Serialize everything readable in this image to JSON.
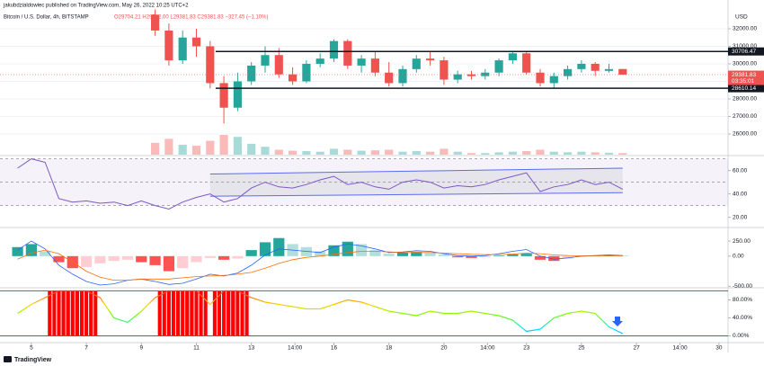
{
  "header": {
    "publisher": "jakubdzialdowiec published on TradingView.com, May 26, 2022 10:25 UTC+2",
    "symbol": "Bitcoin / U.S. Dollar, 4h, BITSTAMP",
    "ohlc": "O29704.21 H29712.00 L29381.83 C29381.83 −327.45 (−1.10%)"
  },
  "footer": {
    "logo": "TradingView"
  },
  "chart_data": [
    {
      "type": "candlestick",
      "currency": "USD",
      "up_color": "#26a69a",
      "down_color": "#ef5350",
      "grid": true,
      "xlim": [
        3.86,
        30.33
      ],
      "ylim": [
        24820,
        33230
      ],
      "yticks": [
        {
          "value": 26000,
          "label": "26000.00"
        },
        {
          "value": 27000,
          "label": "27000.00"
        },
        {
          "value": 28000,
          "label": "28000.00"
        },
        {
          "value": 29000,
          "label": "29000.00"
        },
        {
          "value": 30000,
          "label": "30000.00"
        },
        {
          "value": 31000,
          "label": "31000.00"
        },
        {
          "value": 32000,
          "label": "32000.00"
        }
      ],
      "hlines": [
        30706.47,
        28610.14
      ],
      "hline_start": 11.7,
      "last_price": 29381.83,
      "countdown": "03:35:01",
      "x": [
        9.5,
        10,
        10.5,
        11,
        11.5,
        12,
        12.5,
        13,
        13.5,
        14,
        14.5,
        15,
        15.5,
        16,
        16.5,
        17,
        17.5,
        18,
        18.5,
        19,
        19.5,
        20,
        20.5,
        21,
        21.5,
        22,
        22.5,
        23,
        23.5,
        24,
        24.5,
        25,
        25.5,
        26,
        26.5
      ],
      "open": [
        32800,
        31900,
        30200,
        31500,
        31000,
        28900,
        27500,
        29000,
        29900,
        30500,
        29400,
        29000,
        30000,
        30300,
        31300,
        29900,
        30300,
        29500,
        28900,
        29700,
        30300,
        30200,
        29100,
        29400,
        29300,
        29500,
        30200,
        30600,
        29500,
        28900,
        29300,
        29700,
        30000,
        29600,
        29704.21
      ],
      "high": [
        33100,
        32300,
        31900,
        32000,
        31300,
        29300,
        29500,
        30100,
        31000,
        30900,
        29800,
        30200,
        30600,
        31400,
        31400,
        30500,
        30700,
        30100,
        29900,
        30500,
        30700,
        30400,
        29600,
        29600,
        29700,
        30300,
        30700,
        30700,
        29700,
        29500,
        29900,
        30200,
        30100,
        30000,
        29712
      ],
      "low": [
        31600,
        29900,
        30000,
        30400,
        28600,
        26600,
        27300,
        28800,
        29500,
        29200,
        28800,
        28900,
        29800,
        30100,
        29700,
        29500,
        29300,
        28700,
        28700,
        29500,
        29900,
        28800,
        28900,
        29100,
        29100,
        29300,
        30000,
        29400,
        28700,
        28600,
        29100,
        29500,
        29300,
        29500,
        29381.83
      ],
      "close": [
        31900,
        30200,
        31500,
        31000,
        28900,
        27500,
        29000,
        29900,
        30500,
        29400,
        29000,
        30000,
        30300,
        31300,
        29900,
        30300,
        29500,
        28900,
        29700,
        30300,
        30200,
        29100,
        29400,
        29300,
        29500,
        30200,
        30600,
        29500,
        28900,
        29300,
        29700,
        30000,
        29600,
        29700,
        29381.83
      ],
      "volume": [
        60,
        80,
        50,
        45,
        70,
        100,
        90,
        55,
        40,
        25,
        20,
        18,
        15,
        30,
        25,
        20,
        22,
        25,
        15,
        18,
        15,
        30,
        15,
        8,
        8,
        12,
        15,
        18,
        25,
        15,
        12,
        15,
        12,
        10,
        8
      ]
    },
    {
      "type": "line",
      "color": "#7e57c2",
      "xlim": [
        3.86,
        30.33
      ],
      "ylim": [
        12,
        72
      ],
      "yticks": [
        {
          "value": 20,
          "label": "20.00"
        },
        {
          "value": 40,
          "label": "40.00"
        },
        {
          "value": 60,
          "label": "60.00"
        }
      ],
      "bands": [
        30,
        50,
        70
      ],
      "channel": {
        "x": [
          11.5,
          26.5
        ],
        "upper": [
          57,
          62
        ],
        "lower": [
          38,
          41
        ]
      },
      "x": [
        4.5,
        5,
        5.5,
        6,
        6.5,
        7,
        7.5,
        8,
        8.5,
        9,
        9.5,
        10,
        10.5,
        11,
        11.5,
        12,
        12.5,
        13,
        13.5,
        14,
        14.5,
        15,
        15.5,
        16,
        16.5,
        17,
        17.5,
        18,
        18.5,
        19,
        19.5,
        20,
        20.5,
        21,
        21.5,
        22,
        22.5,
        23,
        23.5,
        24,
        24.5,
        25,
        25.5,
        26,
        26.5
      ],
      "values": [
        62,
        70,
        67,
        36,
        33,
        34,
        32,
        33,
        30,
        34,
        30,
        27,
        33,
        37,
        40,
        33,
        36,
        45,
        50,
        46,
        45,
        48,
        52,
        55,
        48,
        50,
        46,
        44,
        50,
        52,
        50,
        45,
        47,
        46,
        48,
        52,
        55,
        58,
        42,
        46,
        48,
        52,
        48,
        50,
        44
      ]
    },
    {
      "type": "macd",
      "macd_color": "#2962ff",
      "signal_color": "#ff6d00",
      "xlim": [
        3.86,
        30.33
      ],
      "ylim": [
        -510,
        460
      ],
      "yticks": [
        {
          "value": -500,
          "label": "-500.00"
        },
        {
          "value": 0,
          "label": "0.00"
        },
        {
          "value": 250,
          "label": "250.00"
        }
      ],
      "x": [
        4.5,
        5,
        5.5,
        6,
        6.5,
        7,
        7.5,
        8,
        8.5,
        9,
        9.5,
        10,
        10.5,
        11,
        11.5,
        12,
        12.5,
        13,
        13.5,
        14,
        14.5,
        15,
        15.5,
        16,
        16.5,
        17,
        17.5,
        18,
        18.5,
        19,
        19.5,
        20,
        20.5,
        21,
        21.5,
        22,
        22.5,
        23,
        23.5,
        24,
        24.5,
        25,
        25.5,
        26,
        26.5
      ],
      "histogram": [
        150,
        200,
        80,
        -100,
        -200,
        -180,
        -120,
        -80,
        -60,
        -100,
        -150,
        -250,
        -200,
        -100,
        -30,
        -60,
        -40,
        100,
        230,
        300,
        200,
        150,
        80,
        180,
        240,
        200,
        100,
        40,
        60,
        70,
        50,
        30,
        -20,
        -30,
        -20,
        10,
        30,
        40,
        -60,
        -80,
        -40,
        -10,
        10,
        20,
        10
      ],
      "macd": [
        100,
        250,
        120,
        -150,
        -300,
        -420,
        -480,
        -460,
        -400,
        -380,
        -420,
        -470,
        -450,
        -380,
        -300,
        -330,
        -280,
        -150,
        20,
        120,
        100,
        80,
        60,
        150,
        200,
        170,
        120,
        60,
        70,
        90,
        80,
        40,
        10,
        0,
        10,
        40,
        80,
        110,
        0,
        -50,
        -30,
        0,
        10,
        20,
        10
      ],
      "signal": [
        -50,
        50,
        100,
        40,
        -100,
        -250,
        -350,
        -400,
        -400,
        -380,
        -380,
        -380,
        -360,
        -340,
        -330,
        -320,
        -300,
        -270,
        -200,
        -120,
        -60,
        -20,
        0,
        30,
        60,
        80,
        80,
        70,
        60,
        60,
        60,
        50,
        40,
        30,
        25,
        25,
        35,
        50,
        40,
        20,
        10,
        5,
        5,
        5,
        5
      ]
    },
    {
      "type": "oscillator",
      "xlim": [
        3.86,
        30.33
      ],
      "ylim": [
        -13,
        105
      ],
      "yticks": [
        {
          "value": 0,
          "label": "0.00%"
        },
        {
          "value": 40,
          "label": "40.00%"
        },
        {
          "value": 80,
          "label": "80.00%"
        }
      ],
      "upper_level": 100,
      "lower_level": 0,
      "upper_color": "#f23645",
      "lower_color": "#2962ff",
      "xticks": [
        5,
        7,
        9,
        11,
        13,
        {
          "value": 14.583,
          "label": "14:00"
        },
        16,
        18,
        20,
        {
          "value": 21.583,
          "label": "14:00"
        },
        23,
        25,
        27,
        {
          "value": 28.583,
          "label": "14:00"
        },
        30
      ],
      "x": [
        4.5,
        5,
        5.5,
        6,
        6.5,
        7,
        7.5,
        8,
        8.5,
        9,
        9.5,
        10,
        10.5,
        11,
        11.5,
        12,
        12.5,
        13,
        13.5,
        14,
        14.5,
        15,
        15.5,
        16,
        16.5,
        17,
        17.5,
        18,
        18.5,
        19,
        19.5,
        20,
        20.5,
        21,
        21.5,
        22,
        22.5,
        23,
        23.5,
        24,
        24.5,
        25,
        25.5,
        26,
        26.5
      ],
      "values": [
        50,
        70,
        85,
        100,
        100,
        100,
        85,
        40,
        30,
        55,
        85,
        100,
        100,
        100,
        70,
        100,
        100,
        85,
        75,
        70,
        65,
        60,
        60,
        70,
        80,
        75,
        65,
        55,
        50,
        45,
        55,
        50,
        50,
        55,
        50,
        45,
        35,
        10,
        15,
        40,
        50,
        55,
        50,
        20,
        5
      ]
    }
  ]
}
